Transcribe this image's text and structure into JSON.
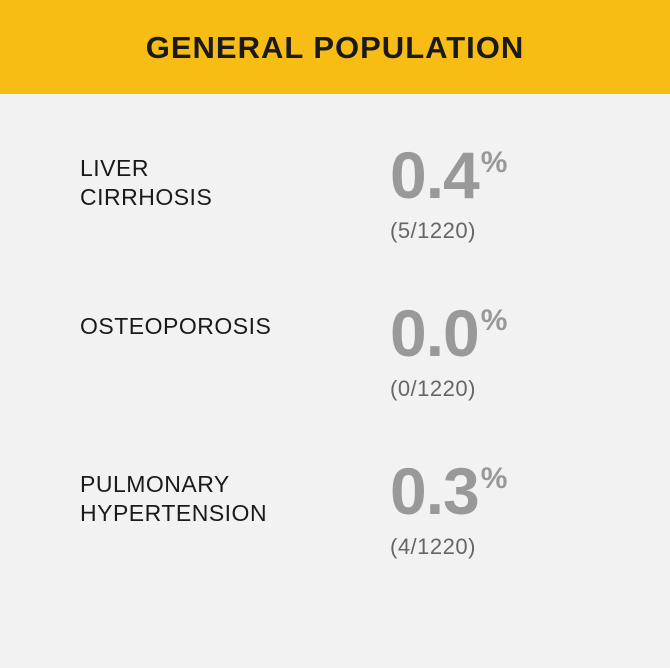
{
  "header": {
    "title": "GENERAL POPULATION"
  },
  "colors": {
    "header_bg": "#f7bd15",
    "header_text": "#1a1a1a",
    "body_bg": "#f2f2f2",
    "label_text": "#1a1a1a",
    "value_text": "#999999",
    "fraction_text": "#666666"
  },
  "rows": [
    {
      "label_line1": "LIVER",
      "label_line2": "CIRRHOSIS",
      "value": "0.4",
      "unit": "%",
      "fraction": "(5/1220)"
    },
    {
      "label_line1": "OSTEOPOROSIS",
      "label_line2": "",
      "value": "0.0",
      "unit": "%",
      "fraction": "(0/1220)"
    },
    {
      "label_line1": "PULMONARY",
      "label_line2": "HYPERTENSION",
      "value": "0.3",
      "unit": "%",
      "fraction": "(4/1220)"
    }
  ]
}
